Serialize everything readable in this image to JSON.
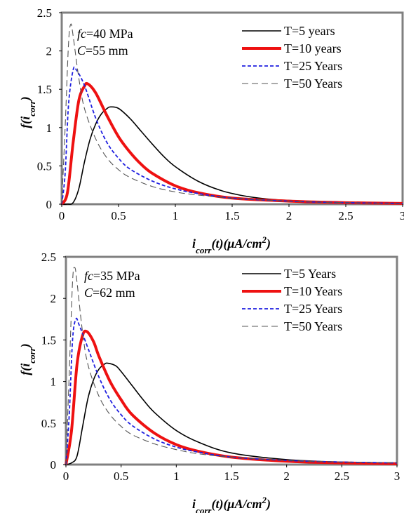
{
  "colors": {
    "black": "#000000",
    "red": "#ee1111",
    "blue": "#1f1fe0",
    "gray": "#555555",
    "frame": "#808080"
  },
  "chart_data": [
    {
      "type": "line",
      "annotation": {
        "fc_label": "fc",
        "fc_value": "=40 MPa",
        "c_label": "C",
        "c_value": "=55 mm"
      },
      "xlabel": {
        "pre": "i",
        "sub": "corr",
        "mid": "(t)(μA/cm",
        "sup": "2",
        "post": ")"
      },
      "ylabel": {
        "pre": "f(i",
        "sub": "corr",
        "post": ")"
      },
      "xlim": [
        0,
        3
      ],
      "ylim": [
        0,
        2.5
      ],
      "xticks": [
        "0",
        "0.5",
        "1",
        "1.5",
        "2",
        "2.5",
        "3"
      ],
      "yticks": [
        "0",
        "0.5",
        "1",
        "1.5",
        "2",
        "2.5"
      ],
      "legend_position": "top-right",
      "series": [
        {
          "name": "T=5 years",
          "color": "#000000",
          "style": "solid-thin",
          "x": [
            0,
            0.05,
            0.1,
            0.15,
            0.2,
            0.25,
            0.3,
            0.35,
            0.4,
            0.43,
            0.5,
            0.6,
            0.7,
            0.8,
            0.9,
            1.0,
            1.2,
            1.4,
            1.6,
            1.8,
            2.0,
            2.5,
            3.0
          ],
          "y": [
            0,
            0.0,
            0.02,
            0.2,
            0.55,
            0.85,
            1.05,
            1.18,
            1.25,
            1.27,
            1.25,
            1.12,
            0.95,
            0.78,
            0.62,
            0.49,
            0.3,
            0.18,
            0.11,
            0.07,
            0.05,
            0.02,
            0.01
          ]
        },
        {
          "name": "T=10 years",
          "color": "#ee1111",
          "style": "solid-thick",
          "x": [
            0,
            0.05,
            0.1,
            0.15,
            0.2,
            0.23,
            0.3,
            0.4,
            0.5,
            0.6,
            0.7,
            0.8,
            1.0,
            1.2,
            1.5,
            2.0,
            2.5,
            3.0
          ],
          "y": [
            0,
            0.15,
            0.8,
            1.35,
            1.54,
            1.57,
            1.45,
            1.15,
            0.88,
            0.68,
            0.52,
            0.4,
            0.24,
            0.15,
            0.08,
            0.04,
            0.02,
            0.01
          ]
        },
        {
          "name": "T=25 Years",
          "color": "#1f1fe0",
          "style": "dashed",
          "x": [
            0,
            0.03,
            0.06,
            0.1,
            0.13,
            0.2,
            0.3,
            0.4,
            0.5,
            0.6,
            0.8,
            1.0,
            1.2,
            1.5,
            2.0,
            2.5,
            3.0
          ],
          "y": [
            0,
            0.4,
            1.3,
            1.75,
            1.75,
            1.55,
            1.12,
            0.8,
            0.6,
            0.46,
            0.3,
            0.2,
            0.14,
            0.08,
            0.04,
            0.02,
            0.01
          ]
        },
        {
          "name": "T=50 Years",
          "color": "#555555",
          "style": "longdash",
          "x": [
            0,
            0.03,
            0.06,
            0.08,
            0.1,
            0.15,
            0.2,
            0.3,
            0.4,
            0.5,
            0.6,
            0.8,
            1.0,
            1.2,
            1.5,
            2.0,
            2.5,
            3.0
          ],
          "y": [
            0,
            1.0,
            2.1,
            2.35,
            2.2,
            1.65,
            1.25,
            0.85,
            0.6,
            0.45,
            0.35,
            0.23,
            0.16,
            0.12,
            0.08,
            0.04,
            0.02,
            0.01
          ]
        }
      ]
    },
    {
      "type": "line",
      "annotation": {
        "fc_label": "fc",
        "fc_value": "=35 MPa",
        "c_label": "C",
        "c_value": "=62 mm"
      },
      "xlabel": {
        "pre": "i",
        "sub": "corr",
        "mid": "(t)(μA/cm",
        "sup": "2",
        "post": ")"
      },
      "ylabel": {
        "pre": "f(i",
        "sub": "corr",
        "post": ")"
      },
      "xlim": [
        0,
        3
      ],
      "ylim": [
        0,
        2.5
      ],
      "xticks": [
        "0",
        "0.5",
        "1",
        "1.5",
        "2",
        "2.5",
        "3"
      ],
      "yticks": [
        "0",
        "0.5",
        "1",
        "1.5",
        "2",
        "2.5"
      ],
      "legend_position": "top-right",
      "series": [
        {
          "name": "T=5 Years",
          "color": "#000000",
          "style": "solid-thin",
          "x": [
            0,
            0.05,
            0.1,
            0.15,
            0.2,
            0.25,
            0.3,
            0.35,
            0.38,
            0.45,
            0.5,
            0.6,
            0.7,
            0.8,
            1.0,
            1.2,
            1.5,
            2.0,
            2.5,
            3.0
          ],
          "y": [
            0,
            0.02,
            0.1,
            0.45,
            0.8,
            1.02,
            1.15,
            1.21,
            1.22,
            1.19,
            1.12,
            0.95,
            0.78,
            0.63,
            0.41,
            0.27,
            0.14,
            0.06,
            0.03,
            0.02
          ]
        },
        {
          "name": "T=10 Years",
          "color": "#ee1111",
          "style": "solid-thick",
          "x": [
            0,
            0.05,
            0.1,
            0.15,
            0.19,
            0.25,
            0.3,
            0.4,
            0.5,
            0.6,
            0.8,
            1.0,
            1.2,
            1.5,
            2.0,
            2.5,
            3.0
          ],
          "y": [
            0,
            0.4,
            1.2,
            1.55,
            1.6,
            1.48,
            1.3,
            1.0,
            0.78,
            0.6,
            0.38,
            0.24,
            0.16,
            0.09,
            0.04,
            0.02,
            0.01
          ]
        },
        {
          "name": "T=25 Years",
          "color": "#1f1fe0",
          "style": "dashed",
          "x": [
            0,
            0.03,
            0.06,
            0.09,
            0.12,
            0.2,
            0.3,
            0.4,
            0.5,
            0.6,
            0.8,
            1.0,
            1.2,
            1.5,
            2.0,
            2.5,
            3.0
          ],
          "y": [
            0,
            0.6,
            1.5,
            1.75,
            1.68,
            1.4,
            1.05,
            0.78,
            0.6,
            0.47,
            0.31,
            0.21,
            0.15,
            0.09,
            0.05,
            0.03,
            0.02
          ]
        },
        {
          "name": "T=50 Years",
          "color": "#555555",
          "style": "longdash",
          "x": [
            0,
            0.03,
            0.06,
            0.08,
            0.1,
            0.15,
            0.2,
            0.3,
            0.4,
            0.5,
            0.6,
            0.8,
            1.0,
            1.2,
            1.5,
            2.0,
            2.5,
            3.0
          ],
          "y": [
            0,
            1.1,
            2.2,
            2.37,
            2.2,
            1.6,
            1.2,
            0.82,
            0.6,
            0.46,
            0.36,
            0.25,
            0.18,
            0.13,
            0.09,
            0.05,
            0.03,
            0.02
          ]
        }
      ]
    }
  ]
}
